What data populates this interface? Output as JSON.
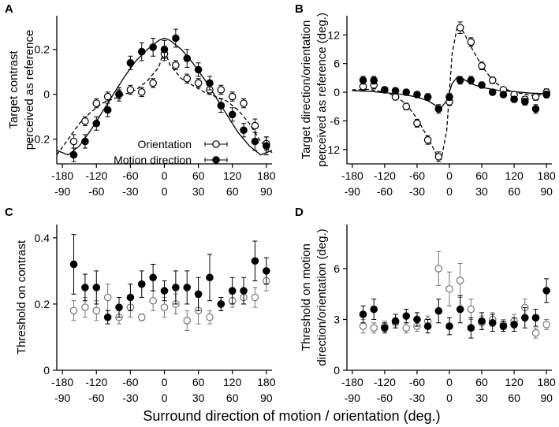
{
  "figure": {
    "xlabel": "Surround direction of motion / orientation (deg.)"
  },
  "legend": {
    "entries": [
      {
        "label": "Orientation",
        "marker": "open-circle"
      },
      {
        "label": "Motion direction",
        "marker": "filled-circle"
      }
    ]
  },
  "chart_data": [
    {
      "panel": "A",
      "type": "scatter",
      "ylabel_lines": [
        "Target contrast",
        "perceived as reference"
      ],
      "x_ticks_motion": [
        "-180",
        "-120",
        "-60",
        "0",
        "60",
        "120",
        "180"
      ],
      "x_ticks_orientation": [
        "-90",
        "-60",
        "-30",
        "0",
        "30",
        "60",
        "90"
      ],
      "xlim": [
        -190,
        190
      ],
      "y_ticks": [
        "0.2",
        "0",
        "-0.2"
      ],
      "ylim": [
        -0.31,
        0.35
      ],
      "series": [
        {
          "name": "Orientation",
          "marker": "open",
          "x": [
            -160,
            -140,
            -120,
            -100,
            -80,
            -60,
            -40,
            -20,
            0,
            20,
            40,
            60,
            80,
            100,
            120,
            140,
            160,
            180
          ],
          "y": [
            -0.21,
            -0.12,
            -0.04,
            -0.01,
            0.0,
            0.02,
            0.01,
            0.05,
            0.18,
            0.13,
            0.07,
            0.05,
            0.02,
            0.02,
            -0.01,
            -0.04,
            -0.14,
            -0.22
          ],
          "err": [
            0.03,
            0.02,
            0.02,
            0.02,
            0.02,
            0.02,
            0.02,
            0.02,
            0.03,
            0.02,
            0.02,
            0.02,
            0.02,
            0.02,
            0.02,
            0.02,
            0.03,
            0.03
          ]
        },
        {
          "name": "Motion direction",
          "marker": "filled",
          "x": [
            -160,
            -140,
            -120,
            -100,
            -80,
            -60,
            -40,
            -20,
            0,
            20,
            40,
            60,
            80,
            100,
            120,
            140,
            160,
            180
          ],
          "y": [
            -0.27,
            -0.21,
            -0.13,
            -0.07,
            0.0,
            0.14,
            0.19,
            0.21,
            0.2,
            0.25,
            0.16,
            0.11,
            0.05,
            -0.05,
            -0.09,
            -0.16,
            -0.21,
            -0.23
          ],
          "err": [
            0.03,
            0.03,
            0.03,
            0.03,
            0.03,
            0.03,
            0.04,
            0.04,
            0.04,
            0.04,
            0.04,
            0.03,
            0.03,
            0.03,
            0.03,
            0.03,
            0.04,
            0.04
          ]
        }
      ],
      "fits": [
        {
          "name": "Orientation fit",
          "style": "dashed",
          "x": [
            -190,
            -170,
            -150,
            -130,
            -110,
            -90,
            -70,
            -50,
            -30,
            -10,
            0,
            10,
            30,
            50,
            70,
            90,
            110,
            130,
            150,
            170,
            190
          ],
          "y": [
            -0.27,
            -0.2,
            -0.13,
            -0.08,
            -0.04,
            -0.02,
            0.0,
            0.02,
            0.06,
            0.12,
            0.2,
            0.13,
            0.07,
            0.04,
            0.01,
            -0.01,
            -0.03,
            -0.07,
            -0.13,
            -0.21,
            -0.26
          ]
        },
        {
          "name": "Motion fit",
          "style": "solid",
          "x": [
            -190,
            -170,
            -150,
            -130,
            -110,
            -90,
            -70,
            -50,
            -30,
            -10,
            0,
            10,
            30,
            50,
            70,
            90,
            110,
            130,
            150,
            170,
            190
          ],
          "y": [
            -0.25,
            -0.27,
            -0.23,
            -0.16,
            -0.08,
            0.0,
            0.08,
            0.15,
            0.2,
            0.24,
            0.25,
            0.24,
            0.2,
            0.14,
            0.07,
            -0.01,
            -0.09,
            -0.17,
            -0.23,
            -0.27,
            -0.25
          ]
        }
      ]
    },
    {
      "panel": "B",
      "type": "scatter",
      "ylabel_lines": [
        "Target direction/orientation",
        "perceived as reference (deg.)"
      ],
      "x_ticks_motion": [
        "-180",
        "-120",
        "-60",
        "0",
        "60",
        "120",
        "180"
      ],
      "x_ticks_orientation": [
        "-90",
        "-60",
        "-30",
        "0",
        "30",
        "60",
        "90"
      ],
      "xlim": [
        -190,
        190
      ],
      "y_ticks": [
        "12",
        "6",
        "0",
        "-6",
        "-12"
      ],
      "ylim": [
        -15,
        16
      ],
      "series": [
        {
          "name": "Orientation",
          "marker": "open",
          "x": [
            -160,
            -140,
            -120,
            -100,
            -80,
            -60,
            -40,
            -20,
            0,
            20,
            40,
            60,
            80,
            100,
            120,
            140,
            160,
            180
          ],
          "y": [
            1.2,
            1.5,
            0.5,
            -1.0,
            -3.0,
            -6.5,
            -10.0,
            -13.5,
            -2.0,
            13.5,
            10.5,
            5.5,
            2.5,
            0.5,
            -0.5,
            -1.5,
            -1.0,
            0.0
          ],
          "err": [
            0.8,
            0.8,
            0.6,
            0.6,
            0.7,
            0.8,
            0.9,
            1.0,
            0.8,
            1.2,
            0.9,
            0.8,
            0.7,
            0.6,
            0.6,
            0.6,
            0.7,
            0.7
          ]
        },
        {
          "name": "Motion direction",
          "marker": "filled",
          "x": [
            -160,
            -140,
            -120,
            -100,
            -80,
            -60,
            -40,
            -20,
            0,
            20,
            40,
            60,
            80,
            100,
            120,
            140,
            160,
            180
          ],
          "y": [
            2.5,
            2.5,
            0.5,
            0.3,
            0.0,
            -0.5,
            -1.0,
            -3.5,
            -1.0,
            2.5,
            2.5,
            1.5,
            0.0,
            -0.5,
            -1.5,
            -2.0,
            -3.5,
            -0.5
          ],
          "err": [
            0.8,
            0.8,
            0.6,
            0.6,
            0.6,
            0.6,
            0.7,
            0.9,
            0.7,
            0.8,
            0.8,
            0.6,
            0.6,
            0.6,
            0.6,
            0.7,
            0.9,
            0.7
          ]
        }
      ],
      "fits": [
        {
          "name": "Orientation fit",
          "style": "dashed",
          "x": [
            -180,
            -150,
            -120,
            -100,
            -80,
            -60,
            -40,
            -25,
            -15,
            -5,
            0,
            5,
            15,
            25,
            40,
            60,
            80,
            100,
            120,
            150,
            180
          ],
          "y": [
            0.5,
            0.6,
            0.0,
            -0.8,
            -2.5,
            -5.5,
            -9.5,
            -12.8,
            -14.0,
            -8.0,
            0.0,
            8.0,
            14.0,
            12.8,
            9.5,
            5.5,
            2.5,
            0.8,
            0.0,
            -0.6,
            -0.5
          ]
        },
        {
          "name": "Motion fit",
          "style": "solid",
          "x": [
            -180,
            -150,
            -120,
            -90,
            -60,
            -40,
            -25,
            -15,
            -5,
            0,
            5,
            15,
            25,
            40,
            60,
            90,
            120,
            150,
            180
          ],
          "y": [
            0.3,
            0.2,
            -0.1,
            -0.4,
            -1.0,
            -1.8,
            -2.8,
            -3.2,
            -1.8,
            0.0,
            1.8,
            3.2,
            2.8,
            1.8,
            1.0,
            0.4,
            0.1,
            -0.2,
            -0.3
          ]
        }
      ]
    },
    {
      "panel": "C",
      "type": "scatter",
      "ylabel_lines": [
        "Threshold on contrast"
      ],
      "x_ticks_motion": [
        "-180",
        "-120",
        "-60",
        "0",
        "60",
        "120",
        "180"
      ],
      "x_ticks_orientation": [
        "-90",
        "-60",
        "-30",
        "0",
        "30",
        "60",
        "90"
      ],
      "xlim": [
        -190,
        190
      ],
      "y_ticks": [
        "0.4",
        "0.2",
        "0"
      ],
      "ylim": [
        0,
        0.44
      ],
      "series": [
        {
          "name": "Orientation",
          "marker": "open",
          "x": [
            -160,
            -140,
            -120,
            -100,
            -80,
            -60,
            -40,
            -20,
            0,
            20,
            40,
            60,
            80,
            100,
            120,
            140,
            160,
            180
          ],
          "y": [
            0.18,
            0.19,
            0.18,
            0.22,
            0.16,
            0.19,
            0.16,
            0.21,
            0.19,
            0.2,
            0.15,
            0.18,
            0.16,
            0.2,
            0.21,
            0.22,
            0.22,
            0.27
          ],
          "err": [
            0.03,
            0.03,
            0.03,
            0.04,
            0.02,
            0.03,
            0.01,
            0.03,
            0.03,
            0.03,
            0.03,
            0.04,
            0.02,
            0.02,
            0.02,
            0.02,
            0.03,
            0.03
          ]
        },
        {
          "name": "Motion direction",
          "marker": "filled",
          "x": [
            -160,
            -140,
            -120,
            -100,
            -80,
            -60,
            -40,
            -20,
            0,
            20,
            40,
            60,
            80,
            100,
            120,
            140,
            160,
            180
          ],
          "y": [
            0.32,
            0.25,
            0.25,
            0.16,
            0.19,
            0.22,
            0.26,
            0.28,
            0.24,
            0.25,
            0.25,
            0.23,
            0.28,
            0.2,
            0.24,
            0.24,
            0.33,
            0.3
          ],
          "err": [
            0.09,
            0.04,
            0.05,
            0.02,
            0.03,
            0.04,
            0.04,
            0.04,
            0.03,
            0.05,
            0.05,
            0.05,
            0.07,
            0.02,
            0.04,
            0.04,
            0.06,
            0.04
          ]
        }
      ]
    },
    {
      "panel": "D",
      "type": "scatter",
      "ylabel_lines": [
        "Threshold on motion",
        "direction/orientation (deg.)"
      ],
      "x_ticks_motion": [
        "-180",
        "-120",
        "-60",
        "0",
        "60",
        "120",
        "180"
      ],
      "x_ticks_orientation": [
        "-90",
        "-60",
        "-30",
        "0",
        "30",
        "60",
        "90"
      ],
      "xlim": [
        -190,
        190
      ],
      "y_ticks": [
        "6",
        "3",
        "0"
      ],
      "ylim": [
        0,
        8.6
      ],
      "series": [
        {
          "name": "Orientation",
          "marker": "open",
          "x": [
            -160,
            -140,
            -120,
            -100,
            -80,
            -60,
            -40,
            -20,
            0,
            20,
            40,
            60,
            80,
            100,
            120,
            140,
            160,
            180
          ],
          "y": [
            2.6,
            2.5,
            2.6,
            2.8,
            2.5,
            2.6,
            2.9,
            6.0,
            4.8,
            5.3,
            3.6,
            2.8,
            3.0,
            2.7,
            2.9,
            3.7,
            2.2,
            2.7
          ],
          "err": [
            0.4,
            0.3,
            0.3,
            0.3,
            0.3,
            0.3,
            0.3,
            1.0,
            1.0,
            1.0,
            0.6,
            0.4,
            0.4,
            0.3,
            0.4,
            0.5,
            0.3,
            0.3
          ]
        },
        {
          "name": "Motion direction",
          "marker": "filled",
          "x": [
            -160,
            -140,
            -120,
            -100,
            -80,
            -60,
            -40,
            -20,
            0,
            20,
            40,
            60,
            80,
            100,
            120,
            140,
            160,
            180
          ],
          "y": [
            3.3,
            3.6,
            2.5,
            2.9,
            3.2,
            3.0,
            2.6,
            3.5,
            2.6,
            3.6,
            2.5,
            2.9,
            2.8,
            2.6,
            2.7,
            3.1,
            3.1,
            4.7
          ],
          "err": [
            0.5,
            0.6,
            0.3,
            0.4,
            0.4,
            0.4,
            0.4,
            0.7,
            0.5,
            0.8,
            0.6,
            0.5,
            0.5,
            0.3,
            0.4,
            0.6,
            0.5,
            0.7
          ]
        }
      ]
    }
  ]
}
